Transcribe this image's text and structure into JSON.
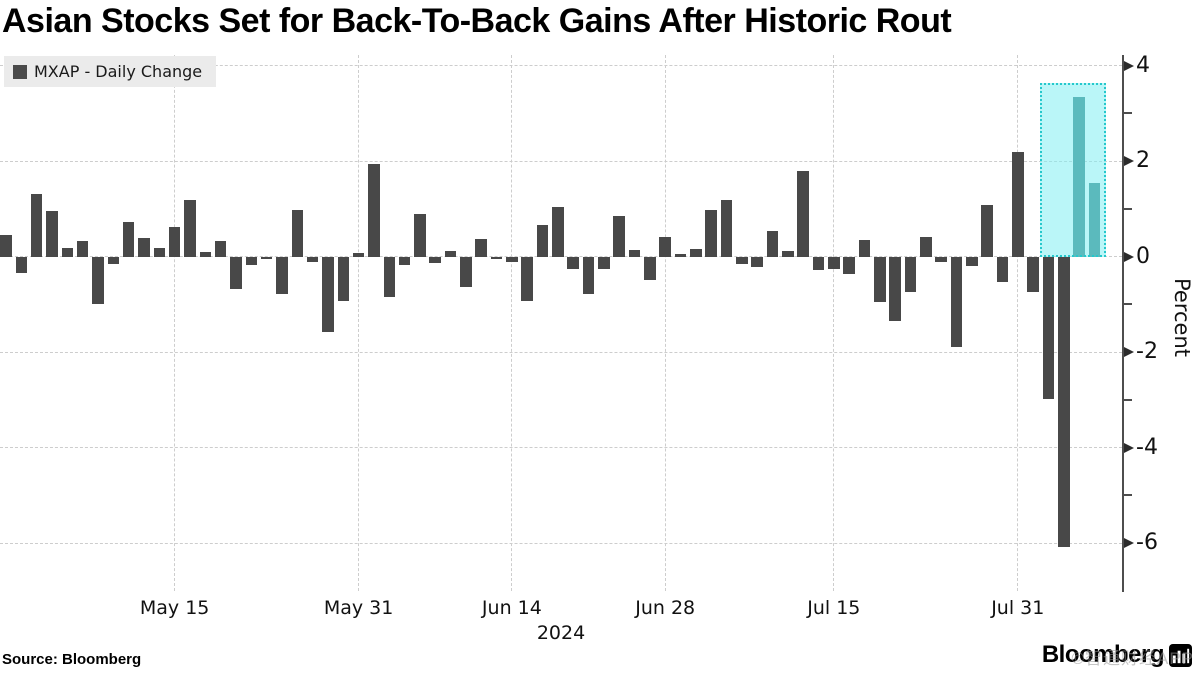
{
  "header": {
    "title": "Asian Stocks Set for Back-To-Back Gains After Historic Rout"
  },
  "footer": {
    "source": "Source: Bloomberg",
    "brand": "Bloomberg",
    "watermark": "©智通财经APP"
  },
  "chart_data": {
    "type": "bar",
    "title": "Asian Stocks Set for Back-To-Back Gains After Historic Rout",
    "legend": "MXAP - Daily Change",
    "ylabel": "Percent",
    "year_label": "2024",
    "ylim": [
      -7.02,
      4.22
    ],
    "yticks_major": [
      4,
      2,
      0,
      -2,
      -4,
      -6
    ],
    "yticks_minor": [
      3,
      1,
      -1,
      -3,
      -5
    ],
    "grid": "dashed",
    "legend_position": "top-left",
    "axis_position": "right",
    "xtick_labels": [
      "May 15",
      "May 31",
      "Jun 14",
      "Jun 28",
      "Jul 15",
      "Jul 31"
    ],
    "xtick_indices": [
      11,
      23,
      33,
      43,
      54,
      66
    ],
    "values": [
      0.45,
      -0.35,
      1.32,
      0.96,
      0.18,
      0.32,
      -1.0,
      -0.15,
      0.73,
      0.38,
      0.19,
      0.61,
      1.19,
      0.1,
      0.32,
      -0.68,
      -0.17,
      -0.05,
      -0.78,
      0.98,
      -0.11,
      -1.57,
      -0.92,
      0.07,
      1.93,
      -0.84,
      -0.18,
      0.9,
      -0.13,
      0.12,
      -0.63,
      0.36,
      -0.05,
      -0.11,
      -0.93,
      0.66,
      1.04,
      -0.26,
      -0.78,
      -0.25,
      0.84,
      0.13,
      -0.5,
      0.42,
      0.05,
      0.16,
      0.97,
      1.18,
      -0.15,
      -0.22,
      0.53,
      0.11,
      1.8,
      -0.29,
      -0.25,
      -0.37,
      0.35,
      -0.95,
      -1.35,
      -0.74,
      0.41,
      -0.11,
      -1.9,
      -0.2,
      1.07,
      -0.53,
      2.2,
      -0.74,
      -2.98,
      -6.08,
      3.35,
      1.55
    ],
    "highlight": {
      "teal_bar_indices": [
        70,
        71
      ],
      "box_start_index": 67.7,
      "box_end_index": 72.0,
      "box_top_value": 3.63,
      "box_bottom_value": 0
    },
    "colors": {
      "bar": "#484848",
      "teal_bar": "#2e7a7c",
      "box_fill": "rgba(130,238,242,0.55)",
      "box_border": "#25c8cc",
      "grid": "#cdcdcd",
      "axis": "#4d4d4d"
    }
  }
}
